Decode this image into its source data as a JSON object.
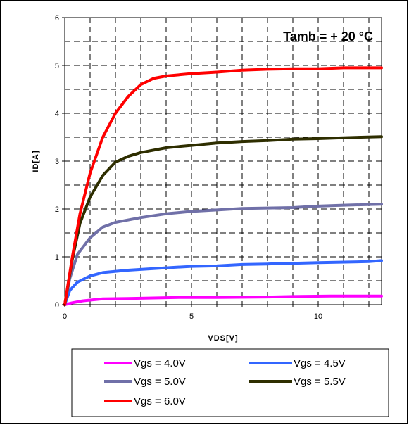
{
  "chart_data": {
    "type": "line",
    "title": "",
    "xlabel": "VDS[V]",
    "ylabel": "ID[A]",
    "annotation": "Tamb = + 20 °C",
    "xlim": [
      0,
      12.5
    ],
    "ylim": [
      0,
      6
    ],
    "xticks": [
      0,
      5,
      10
    ],
    "yticks": [
      0,
      1,
      2,
      3,
      4,
      5,
      6
    ],
    "grid": true,
    "legend_position": "bottom",
    "series": [
      {
        "name": "Vgs = 4.0V",
        "color": "#ff00ff",
        "points": [
          [
            0,
            0
          ],
          [
            0.3,
            0.04
          ],
          [
            0.7,
            0.08
          ],
          [
            1.5,
            0.12
          ],
          [
            2.5,
            0.13
          ],
          [
            3.5,
            0.14
          ],
          [
            4.5,
            0.15
          ],
          [
            6,
            0.15
          ],
          [
            8,
            0.16
          ],
          [
            9,
            0.17
          ],
          [
            10.5,
            0.18
          ],
          [
            12.5,
            0.18
          ]
        ]
      },
      {
        "name": "Vgs = 4.5V",
        "color": "#3366ff",
        "points": [
          [
            0,
            0
          ],
          [
            0.2,
            0.3
          ],
          [
            0.5,
            0.47
          ],
          [
            1,
            0.6
          ],
          [
            1.5,
            0.67
          ],
          [
            2.5,
            0.72
          ],
          [
            4,
            0.77
          ],
          [
            5,
            0.8
          ],
          [
            6,
            0.81
          ],
          [
            7,
            0.84
          ],
          [
            8,
            0.85
          ],
          [
            10,
            0.88
          ],
          [
            12,
            0.9
          ],
          [
            12.5,
            0.92
          ]
        ]
      },
      {
        "name": "Vgs = 5.0V",
        "color": "#7070a8",
        "points": [
          [
            0,
            0
          ],
          [
            0.2,
            0.55
          ],
          [
            0.5,
            1.05
          ],
          [
            1,
            1.4
          ],
          [
            1.5,
            1.62
          ],
          [
            2,
            1.72
          ],
          [
            3,
            1.82
          ],
          [
            4,
            1.9
          ],
          [
            5,
            1.95
          ],
          [
            6,
            1.98
          ],
          [
            7,
            2.01
          ],
          [
            8,
            2.02
          ],
          [
            9,
            2.03
          ],
          [
            10,
            2.06
          ],
          [
            11,
            2.08
          ],
          [
            12.5,
            2.1
          ]
        ]
      },
      {
        "name": "Vgs = 5.5V",
        "color": "#2e2e00",
        "points": [
          [
            0,
            0
          ],
          [
            0.3,
            0.95
          ],
          [
            0.6,
            1.7
          ],
          [
            1,
            2.25
          ],
          [
            1.5,
            2.7
          ],
          [
            2,
            2.98
          ],
          [
            2.5,
            3.1
          ],
          [
            3,
            3.18
          ],
          [
            4,
            3.28
          ],
          [
            5,
            3.33
          ],
          [
            6,
            3.38
          ],
          [
            7,
            3.41
          ],
          [
            8,
            3.43
          ],
          [
            9,
            3.46
          ],
          [
            10,
            3.47
          ],
          [
            11,
            3.49
          ],
          [
            12.5,
            3.51
          ]
        ]
      },
      {
        "name": "Vgs = 6.0V",
        "color": "#ff0000",
        "points": [
          [
            0,
            0
          ],
          [
            0.3,
            1.0
          ],
          [
            0.6,
            1.9
          ],
          [
            1,
            2.75
          ],
          [
            1.5,
            3.5
          ],
          [
            2,
            4.0
          ],
          [
            2.5,
            4.35
          ],
          [
            3,
            4.6
          ],
          [
            3.5,
            4.73
          ],
          [
            4,
            4.78
          ],
          [
            5,
            4.83
          ],
          [
            6,
            4.86
          ],
          [
            7,
            4.9
          ],
          [
            8,
            4.92
          ],
          [
            9,
            4.93
          ],
          [
            10,
            4.93
          ],
          [
            11,
            4.95
          ],
          [
            12.5,
            4.95
          ]
        ]
      }
    ]
  }
}
